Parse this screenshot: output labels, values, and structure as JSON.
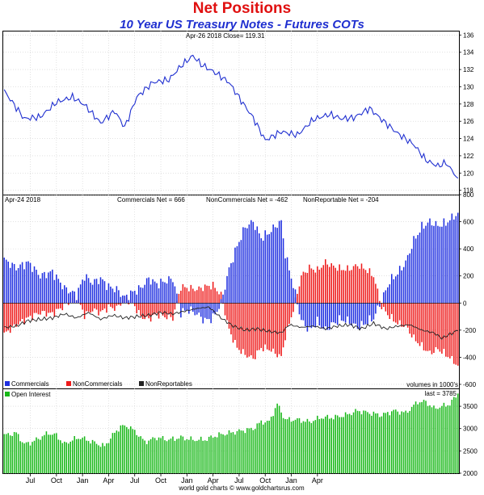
{
  "header": {
    "title": "Net Positions",
    "subtitle": "10 Year US Treasury Notes - Futures COTs"
  },
  "chart_data": [
    {
      "type": "line",
      "panel": "price",
      "info": "Apr-26  2018   Close= 119.31",
      "ylim": [
        117.5,
        136.5
      ],
      "yticks": [
        118,
        120,
        122,
        124,
        126,
        128,
        130,
        132,
        134,
        136
      ],
      "line_color": "#1f2fd0",
      "anchors": [
        [
          0,
          129.5
        ],
        [
          10,
          126.3
        ],
        [
          18,
          126.5
        ],
        [
          26,
          128.2
        ],
        [
          34,
          128.8
        ],
        [
          40,
          127.9
        ],
        [
          48,
          125.8
        ],
        [
          55,
          127.2
        ],
        [
          60,
          125.3
        ],
        [
          66,
          128.8
        ],
        [
          74,
          130.5
        ],
        [
          82,
          130.8
        ],
        [
          88,
          132.4
        ],
        [
          94,
          133.6
        ],
        [
          98,
          132.6
        ],
        [
          106,
          131.5
        ],
        [
          112,
          130.5
        ],
        [
          118,
          128.4
        ],
        [
          124,
          126.4
        ],
        [
          130,
          123.8
        ],
        [
          138,
          124.8
        ],
        [
          146,
          124.4
        ],
        [
          154,
          126.2
        ],
        [
          162,
          126.8
        ],
        [
          168,
          126.3
        ],
        [
          174,
          126.4
        ],
        [
          182,
          127.5
        ],
        [
          188,
          126.2
        ],
        [
          196,
          124.6
        ],
        [
          204,
          123.3
        ],
        [
          210,
          121.5
        ],
        [
          216,
          120.8
        ],
        [
          220,
          121.2
        ],
        [
          226,
          119.4
        ]
      ]
    },
    {
      "type": "bar",
      "panel": "net_positions",
      "info": {
        "date": "Apr-24  2018",
        "commercials": "Commercials Net = 666",
        "noncommercials": "NonCommercials Net = -462",
        "nonreportables": "NonReportable Net = -204"
      },
      "ylim": [
        -630,
        800
      ],
      "yticks": [
        800,
        600,
        400,
        200,
        0,
        -200,
        -400,
        -600
      ],
      "units_note": "volumes in 1000's",
      "legend": [
        "Commercials",
        "NonCommercials",
        "NonReportables"
      ],
      "colors": {
        "commercials": "#1f2fe0",
        "noncommercials": "#ee1a1a",
        "nonreportables": "#222222"
      },
      "commercials_anchors": [
        [
          0,
          320
        ],
        [
          6,
          260
        ],
        [
          12,
          300
        ],
        [
          18,
          200
        ],
        [
          24,
          230
        ],
        [
          30,
          110
        ],
        [
          36,
          60
        ],
        [
          40,
          200
        ],
        [
          44,
          150
        ],
        [
          48,
          180
        ],
        [
          52,
          120
        ],
        [
          56,
          100
        ],
        [
          60,
          40
        ],
        [
          64,
          80
        ],
        [
          68,
          110
        ],
        [
          72,
          180
        ],
        [
          76,
          140
        ],
        [
          80,
          160
        ],
        [
          84,
          180
        ],
        [
          88,
          -70
        ],
        [
          92,
          -50
        ],
        [
          96,
          -80
        ],
        [
          100,
          -130
        ],
        [
          104,
          -110
        ],
        [
          108,
          0
        ],
        [
          112,
          250
        ],
        [
          116,
          420
        ],
        [
          120,
          560
        ],
        [
          124,
          600
        ],
        [
          128,
          480
        ],
        [
          132,
          520
        ],
        [
          136,
          580
        ],
        [
          138,
          600
        ],
        [
          140,
          360
        ],
        [
          144,
          130
        ],
        [
          148,
          -130
        ],
        [
          152,
          -200
        ],
        [
          156,
          -140
        ],
        [
          160,
          -200
        ],
        [
          164,
          -150
        ],
        [
          168,
          -120
        ],
        [
          172,
          -140
        ],
        [
          176,
          -180
        ],
        [
          180,
          -150
        ],
        [
          184,
          -110
        ],
        [
          188,
          20
        ],
        [
          192,
          160
        ],
        [
          196,
          220
        ],
        [
          200,
          300
        ],
        [
          204,
          460
        ],
        [
          208,
          560
        ],
        [
          212,
          600
        ],
        [
          216,
          570
        ],
        [
          220,
          590
        ],
        [
          224,
          640
        ],
        [
          226,
          666
        ]
      ],
      "noncommercials_anchors": [
        [
          0,
          -230
        ],
        [
          6,
          -160
        ],
        [
          12,
          -110
        ],
        [
          18,
          -70
        ],
        [
          24,
          -80
        ],
        [
          30,
          -20
        ],
        [
          36,
          50
        ],
        [
          40,
          -90
        ],
        [
          44,
          -50
        ],
        [
          48,
          -70
        ],
        [
          52,
          -30
        ],
        [
          56,
          -40
        ],
        [
          60,
          40
        ],
        [
          64,
          0
        ],
        [
          68,
          -100
        ],
        [
          72,
          -120
        ],
        [
          76,
          -80
        ],
        [
          80,
          -100
        ],
        [
          84,
          -110
        ],
        [
          88,
          120
        ],
        [
          92,
          110
        ],
        [
          96,
          100
        ],
        [
          100,
          120
        ],
        [
          104,
          130
        ],
        [
          108,
          60
        ],
        [
          112,
          -200
        ],
        [
          116,
          -330
        ],
        [
          120,
          -380
        ],
        [
          124,
          -410
        ],
        [
          128,
          -330
        ],
        [
          132,
          -340
        ],
        [
          136,
          -380
        ],
        [
          138,
          -400
        ],
        [
          140,
          -250
        ],
        [
          144,
          -50
        ],
        [
          148,
          200
        ],
        [
          152,
          260
        ],
        [
          156,
          240
        ],
        [
          160,
          300
        ],
        [
          164,
          270
        ],
        [
          168,
          250
        ],
        [
          172,
          250
        ],
        [
          176,
          280
        ],
        [
          180,
          250
        ],
        [
          184,
          200
        ],
        [
          188,
          -30
        ],
        [
          192,
          -100
        ],
        [
          196,
          -150
        ],
        [
          200,
          -170
        ],
        [
          204,
          -260
        ],
        [
          208,
          -320
        ],
        [
          212,
          -370
        ],
        [
          216,
          -340
        ],
        [
          220,
          -380
        ],
        [
          224,
          -430
        ],
        [
          226,
          -462
        ]
      ],
      "nonreportables_anchors": [
        [
          0,
          -180
        ],
        [
          6,
          -170
        ],
        [
          12,
          -130
        ],
        [
          18,
          -120
        ],
        [
          24,
          -110
        ],
        [
          30,
          -80
        ],
        [
          36,
          -110
        ],
        [
          42,
          -70
        ],
        [
          48,
          -120
        ],
        [
          54,
          -90
        ],
        [
          60,
          -110
        ],
        [
          66,
          -100
        ],
        [
          72,
          -90
        ],
        [
          78,
          -70
        ],
        [
          84,
          -80
        ],
        [
          90,
          -60
        ],
        [
          96,
          -40
        ],
        [
          102,
          -30
        ],
        [
          108,
          -110
        ],
        [
          114,
          -170
        ],
        [
          120,
          -200
        ],
        [
          126,
          -190
        ],
        [
          132,
          -210
        ],
        [
          138,
          -220
        ],
        [
          142,
          -160
        ],
        [
          148,
          -180
        ],
        [
          154,
          -170
        ],
        [
          160,
          -190
        ],
        [
          166,
          -170
        ],
        [
          172,
          -160
        ],
        [
          178,
          -190
        ],
        [
          184,
          -150
        ],
        [
          190,
          -190
        ],
        [
          196,
          -170
        ],
        [
          202,
          -160
        ],
        [
          208,
          -200
        ],
        [
          214,
          -220
        ],
        [
          218,
          -260
        ],
        [
          222,
          -230
        ],
        [
          226,
          -204
        ]
      ]
    },
    {
      "type": "bar",
      "panel": "open_interest",
      "legend": "Open Interest",
      "info": "last = 3785",
      "ylim": [
        2000,
        3900
      ],
      "yticks": [
        2000,
        2500,
        3000,
        3500
      ],
      "bar_color": "#18b818",
      "anchors": [
        [
          0,
          2850
        ],
        [
          6,
          2900
        ],
        [
          10,
          2650
        ],
        [
          14,
          2700
        ],
        [
          18,
          2800
        ],
        [
          22,
          2900
        ],
        [
          26,
          2850
        ],
        [
          30,
          2650
        ],
        [
          34,
          2750
        ],
        [
          38,
          2800
        ],
        [
          44,
          2700
        ],
        [
          50,
          2600
        ],
        [
          54,
          2850
        ],
        [
          58,
          3050
        ],
        [
          62,
          3050
        ],
        [
          66,
          2900
        ],
        [
          70,
          2700
        ],
        [
          76,
          2800
        ],
        [
          82,
          2750
        ],
        [
          88,
          2800
        ],
        [
          94,
          2750
        ],
        [
          100,
          2750
        ],
        [
          106,
          2850
        ],
        [
          112,
          2900
        ],
        [
          118,
          2950
        ],
        [
          124,
          3000
        ],
        [
          128,
          3150
        ],
        [
          132,
          3150
        ],
        [
          136,
          3550
        ],
        [
          140,
          3200
        ],
        [
          146,
          3200
        ],
        [
          152,
          3150
        ],
        [
          158,
          3250
        ],
        [
          164,
          3250
        ],
        [
          170,
          3300
        ],
        [
          176,
          3400
        ],
        [
          182,
          3350
        ],
        [
          188,
          3300
        ],
        [
          194,
          3400
        ],
        [
          200,
          3350
        ],
        [
          206,
          3600
        ],
        [
          210,
          3600
        ],
        [
          214,
          3450
        ],
        [
          218,
          3500
        ],
        [
          222,
          3550
        ],
        [
          226,
          3785
        ]
      ]
    }
  ],
  "x_axis": {
    "labels": [
      "Jul",
      "Oct",
      "Jan",
      "Apr",
      "Jul",
      "Oct",
      "Jan",
      "Apr",
      "Jul",
      "Oct",
      "Jan",
      "Apr"
    ],
    "label_weeks": [
      13,
      26,
      39,
      52,
      65,
      78,
      91,
      104,
      117,
      130,
      143,
      156
    ],
    "total_weeks": 227
  },
  "footer": {
    "credit": "world gold charts © www.goldchartsrus.com"
  }
}
